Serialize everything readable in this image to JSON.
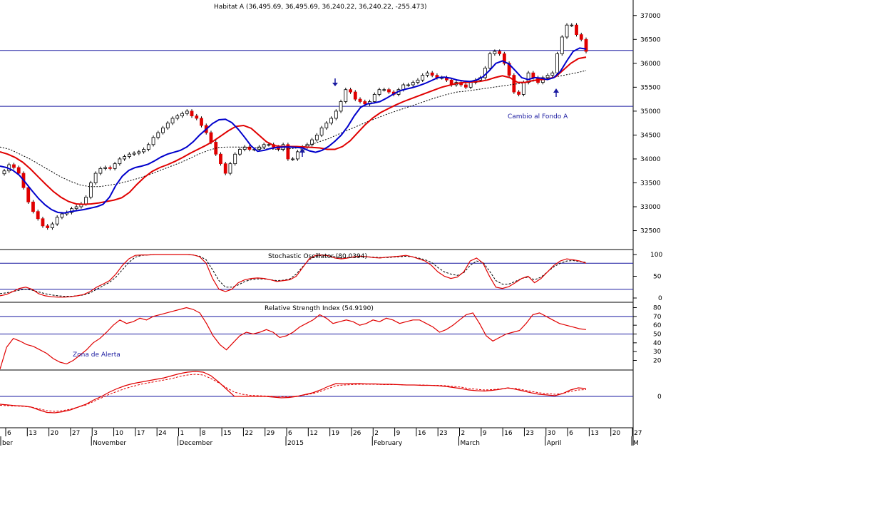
{
  "chart_data": {
    "type": "line",
    "title": "Habitat A (36,495.69, 36,495.69, 36,240.22, 36,240.22, -255.473)",
    "price_axis": {
      "ticks": [
        37000,
        36500,
        36000,
        35500,
        35000,
        34500,
        34000,
        33500,
        33000,
        32500
      ],
      "ylim": [
        32150,
        37250
      ]
    },
    "horizontal_levels": [
      36270,
      35100
    ],
    "annotations": {
      "bottom_change": "Cambio al Fondo A",
      "alert_zone": "Zona de Alerta"
    },
    "price_series": {
      "close": [
        33750,
        33880,
        33820,
        33700,
        33400,
        33100,
        32900,
        32750,
        32600,
        32560,
        32640,
        32780,
        32850,
        32880,
        32960,
        33000,
        33060,
        33200,
        33500,
        33700,
        33800,
        33820,
        33800,
        33900,
        34000,
        34050,
        34100,
        34120,
        34150,
        34200,
        34300,
        34450,
        34550,
        34650,
        34750,
        34850,
        34900,
        34950,
        35000,
        34900,
        34850,
        34700,
        34550,
        34350,
        34100,
        33900,
        33700,
        33900,
        34100,
        34200,
        34250,
        34200,
        34200,
        34250,
        34300,
        34300,
        34250,
        34200,
        34300,
        34000,
        34000,
        34150,
        34250,
        34300,
        34400,
        34500,
        34650,
        34750,
        34850,
        35000,
        35200,
        35450,
        35400,
        35250,
        35200,
        35150,
        35200,
        35350,
        35450,
        35450,
        35400,
        35350,
        35450,
        35550,
        35550,
        35600,
        35650,
        35750,
        35800,
        35750,
        35700,
        35700,
        35650,
        35550,
        35600,
        35550,
        35500,
        35600,
        35650,
        35700,
        35900,
        36200,
        36250,
        36200,
        36000,
        35750,
        35400,
        35350,
        35600,
        35800,
        35700,
        35600,
        35700,
        35750,
        35800,
        36200,
        36550,
        36800,
        36800,
        36600,
        36500,
        36250
      ],
      "ema_fast": [
        33850,
        33820,
        33760,
        33660,
        33500,
        33330,
        33170,
        33040,
        32940,
        32880,
        32870,
        32900,
        32920,
        32940,
        32970,
        33000,
        33050,
        33200,
        33450,
        33640,
        33760,
        33820,
        33850,
        33890,
        33960,
        34040,
        34100,
        34140,
        34180,
        34250,
        34360,
        34500,
        34620,
        34740,
        34820,
        34830,
        34760,
        34620,
        34450,
        34270,
        34160,
        34180,
        34220,
        34240,
        34250,
        34250,
        34240,
        34230,
        34170,
        34140,
        34180,
        34260,
        34370,
        34500,
        34680,
        34900,
        35080,
        35150,
        35170,
        35200,
        35270,
        35350,
        35420,
        35460,
        35490,
        35530,
        35580,
        35640,
        35700,
        35710,
        35690,
        35650,
        35630,
        35620,
        35650,
        35720,
        35850,
        36000,
        36050,
        35990,
        35850,
        35700,
        35660,
        35700,
        35690,
        35660,
        35700,
        35830,
        36050,
        36250,
        36320,
        36300
      ],
      "ema_slow": [
        34150,
        34100,
        34030,
        33930,
        33790,
        33630,
        33470,
        33320,
        33200,
        33110,
        33060,
        33050,
        33060,
        33080,
        33110,
        33140,
        33190,
        33300,
        33470,
        33620,
        33740,
        33820,
        33880,
        33950,
        34030,
        34120,
        34200,
        34280,
        34370,
        34480,
        34590,
        34680,
        34700,
        34640,
        34500,
        34360,
        34280,
        34260,
        34260,
        34260,
        34250,
        34240,
        34230,
        34200,
        34200,
        34260,
        34380,
        34550,
        34720,
        34860,
        34970,
        35050,
        35130,
        35200,
        35260,
        35320,
        35380,
        35440,
        35500,
        35540,
        35580,
        35600,
        35610,
        35620,
        35650,
        35700,
        35740,
        35700,
        35600,
        35600,
        35640,
        35660,
        35670,
        35720,
        35860,
        36000,
        36100,
        36130
      ],
      "ma_long": [
        34250,
        34200,
        34100,
        34000,
        33880,
        33760,
        33640,
        33540,
        33460,
        33420,
        33420,
        33450,
        33490,
        33540,
        33600,
        33670,
        33750,
        33830,
        33910,
        34000,
        34100,
        34180,
        34240,
        34250,
        34250,
        34240,
        34230,
        34210,
        34200,
        34210,
        34230,
        34280,
        34350,
        34420,
        34510,
        34600,
        34690,
        34780,
        34860,
        34940,
        35010,
        35080,
        35150,
        35220,
        35290,
        35350,
        35400,
        35420,
        35450,
        35480,
        35510,
        35540,
        35570,
        35600,
        35640,
        35680,
        35720,
        35760,
        35800,
        35850
      ]
    },
    "stochastic": {
      "title": "Stochastic Oscillator (80.0394)",
      "ticks": [
        100,
        50,
        0
      ],
      "levels": [
        80,
        20
      ],
      "k": [
        5,
        8,
        15,
        22,
        25,
        20,
        10,
        5,
        3,
        2,
        2,
        3,
        5,
        8,
        15,
        25,
        32,
        40,
        55,
        75,
        90,
        98,
        99,
        99,
        100,
        100,
        100,
        100,
        100,
        100,
        99,
        95,
        80,
        45,
        20,
        15,
        20,
        35,
        42,
        45,
        46,
        45,
        42,
        38,
        40,
        42,
        50,
        70,
        90,
        98,
        99,
        97,
        92,
        90,
        92,
        95,
        96,
        95,
        93,
        92,
        94,
        95,
        96,
        98,
        95,
        90,
        85,
        75,
        60,
        50,
        45,
        48,
        60,
        85,
        92,
        80,
        50,
        25,
        22,
        26,
        35,
        45,
        50,
        35,
        45,
        60,
        75,
        85,
        90,
        88,
        85,
        80
      ],
      "d": [
        10,
        12,
        15,
        18,
        20,
        18,
        14,
        10,
        7,
        5,
        4,
        4,
        5,
        7,
        12,
        20,
        28,
        36,
        48,
        65,
        82,
        94,
        98,
        99,
        100,
        100,
        100,
        100,
        100,
        100,
        99,
        96,
        88,
        65,
        40,
        25,
        25,
        30,
        38,
        42,
        44,
        44,
        42,
        40,
        41,
        44,
        55,
        72,
        88,
        96,
        98,
        97,
        95,
        92,
        93,
        94,
        95,
        95,
        94,
        93,
        93,
        94,
        95,
        96,
        95,
        92,
        88,
        82,
        70,
        60,
        55,
        52,
        58,
        75,
        85,
        82,
        62,
        40,
        32,
        32,
        38,
        45,
        48,
        42,
        48,
        60,
        72,
        80,
        85,
        86,
        84,
        82
      ]
    },
    "rsi": {
      "title": "Relative Strength Index (54.9190)",
      "ticks": [
        80,
        70,
        60,
        50,
        40,
        30,
        20
      ],
      "levels": [
        70,
        50
      ],
      "values": [
        10,
        35,
        45,
        42,
        38,
        36,
        32,
        28,
        22,
        18,
        16,
        20,
        26,
        32,
        40,
        45,
        52,
        60,
        66,
        62,
        64,
        68,
        66,
        70,
        72,
        74,
        76,
        78,
        80,
        78,
        74,
        62,
        48,
        38,
        32,
        40,
        48,
        52,
        50,
        52,
        55,
        52,
        46,
        48,
        52,
        58,
        62,
        66,
        72,
        68,
        62,
        64,
        66,
        64,
        60,
        62,
        66,
        64,
        68,
        66,
        62,
        64,
        66,
        66,
        62,
        58,
        52,
        55,
        60,
        66,
        72,
        74,
        62,
        48,
        42,
        46,
        50,
        52,
        54,
        62,
        72,
        74,
        70,
        66,
        62,
        60,
        58,
        56,
        55
      ]
    },
    "macd": {
      "ticks": [
        0
      ],
      "line": [
        -22,
        -24,
        -26,
        -27,
        -30,
        -38,
        -45,
        -46,
        -43,
        -38,
        -30,
        -22,
        -10,
        0,
        12,
        22,
        30,
        36,
        40,
        44,
        48,
        52,
        58,
        64,
        68,
        70,
        68,
        58,
        40,
        20,
        0,
        0,
        0,
        0,
        0,
        -2,
        -4,
        -3,
        0,
        5,
        10,
        18,
        28,
        36,
        35,
        36,
        36,
        35,
        35,
        34,
        34,
        33,
        32,
        32,
        31,
        31,
        30,
        28,
        25,
        22,
        18,
        16,
        15,
        17,
        20,
        24,
        20,
        15,
        10,
        6,
        4,
        2,
        8,
        18,
        24,
        22
      ],
      "signal": [
        -25,
        -26,
        -27,
        -28,
        -30,
        -35,
        -40,
        -42,
        -40,
        -36,
        -30,
        -24,
        -14,
        -4,
        6,
        14,
        22,
        28,
        34,
        38,
        42,
        46,
        50,
        56,
        60,
        62,
        60,
        50,
        38,
        24,
        12,
        6,
        3,
        2,
        1,
        0,
        -1,
        -1,
        1,
        4,
        8,
        14,
        22,
        30,
        32,
        33,
        34,
        34,
        34,
        33,
        33,
        33,
        32,
        32,
        32,
        31,
        31,
        30,
        28,
        26,
        22,
        20,
        18,
        19,
        21,
        23,
        22,
        18,
        14,
        10,
        8,
        6,
        8,
        14,
        18,
        19
      ]
    },
    "x_axis": {
      "day_labels": [
        "6",
        "13",
        "20",
        "27",
        "3",
        "10",
        "17",
        "24",
        "1",
        "8",
        "15",
        "22",
        "29",
        "6",
        "12",
        "19",
        "26",
        "2",
        "9",
        "16",
        "23",
        "2",
        "9",
        "16",
        "23",
        "30",
        "6",
        "13",
        "20",
        "27"
      ],
      "month_labels": [
        "ber",
        "November",
        "December",
        "2015",
        "February",
        "March",
        "April",
        "M"
      ]
    },
    "colors": {
      "up_candle": "#ffffff",
      "down_candle": "#e00000",
      "ema_fast": "#0000cc",
      "ema_slow": "#e00000",
      "ma_long": "#000000",
      "level_line": "#1a1aa0",
      "arrow": "#1a1aa0"
    }
  }
}
